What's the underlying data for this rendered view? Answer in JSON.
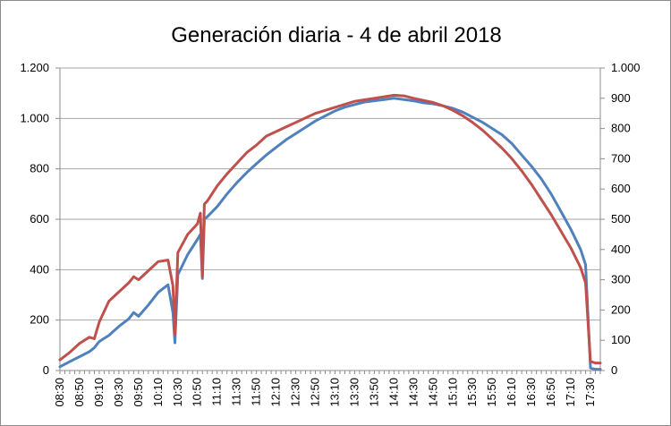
{
  "chart_data": {
    "type": "line",
    "title": "Generación diaria - 4 de abril 2018",
    "xlabel": "",
    "ylabel": "",
    "y_left": {
      "ylim": [
        0,
        1200
      ],
      "ticks": [
        0,
        200,
        400,
        600,
        800,
        1000,
        1200
      ],
      "tick_labels": [
        "0",
        "200",
        "400",
        "600",
        "800",
        "1.000",
        "1.200"
      ]
    },
    "y_right": {
      "ylim": [
        0,
        1000
      ],
      "ticks": [
        0,
        100,
        200,
        300,
        400,
        500,
        600,
        700,
        800,
        900,
        1000
      ],
      "tick_labels": [
        "0",
        "100",
        "200",
        "300",
        "400",
        "500",
        "600",
        "700",
        "800",
        "900",
        "1.000"
      ]
    },
    "x_range": [
      "08:30",
      "17:40"
    ],
    "x_tick_labels": [
      "08:30",
      "08:50",
      "09:10",
      "09:30",
      "09:50",
      "10:10",
      "10:30",
      "10:50",
      "11:10",
      "11:30",
      "11:50",
      "12:10",
      "12:30",
      "12:50",
      "13:10",
      "13:30",
      "13:50",
      "14:10",
      "14:30",
      "14:50",
      "15:10",
      "15:30",
      "15:50",
      "16:10",
      "16:30",
      "16:50",
      "17:10",
      "17:30"
    ],
    "grid": true,
    "legend": "none",
    "series": [
      {
        "axis": "left",
        "color": "#4f81bd",
        "points": [
          [
            "08:30",
            15
          ],
          [
            "08:40",
            35
          ],
          [
            "08:50",
            55
          ],
          [
            "09:00",
            75
          ],
          [
            "09:05",
            90
          ],
          [
            "09:10",
            115
          ],
          [
            "09:20",
            140
          ],
          [
            "09:30",
            175
          ],
          [
            "09:40",
            205
          ],
          [
            "09:45",
            230
          ],
          [
            "09:50",
            215
          ],
          [
            "10:00",
            260
          ],
          [
            "10:10",
            310
          ],
          [
            "10:20",
            340
          ],
          [
            "10:25",
            230
          ],
          [
            "10:27",
            110
          ],
          [
            "10:30",
            380
          ],
          [
            "10:40",
            460
          ],
          [
            "10:50",
            520
          ],
          [
            "10:53",
            540
          ],
          [
            "10:55",
            365
          ],
          [
            "10:57",
            600
          ],
          [
            "11:00",
            610
          ],
          [
            "11:10",
            650
          ],
          [
            "11:20",
            700
          ],
          [
            "11:30",
            745
          ],
          [
            "11:40",
            785
          ],
          [
            "11:50",
            820
          ],
          [
            "12:00",
            855
          ],
          [
            "12:10",
            885
          ],
          [
            "12:20",
            915
          ],
          [
            "12:30",
            940
          ],
          [
            "12:40",
            965
          ],
          [
            "12:50",
            990
          ],
          [
            "13:00",
            1010
          ],
          [
            "13:10",
            1030
          ],
          [
            "13:20",
            1045
          ],
          [
            "13:30",
            1055
          ],
          [
            "13:40",
            1065
          ],
          [
            "13:50",
            1070
          ],
          [
            "14:00",
            1075
          ],
          [
            "14:10",
            1080
          ],
          [
            "14:20",
            1075
          ],
          [
            "14:30",
            1070
          ],
          [
            "14:40",
            1062
          ],
          [
            "14:50",
            1058
          ],
          [
            "15:00",
            1050
          ],
          [
            "15:10",
            1040
          ],
          [
            "15:20",
            1025
          ],
          [
            "15:30",
            1005
          ],
          [
            "15:40",
            985
          ],
          [
            "15:50",
            960
          ],
          [
            "16:00",
            935
          ],
          [
            "16:10",
            900
          ],
          [
            "16:20",
            855
          ],
          [
            "16:30",
            810
          ],
          [
            "16:40",
            760
          ],
          [
            "16:50",
            700
          ],
          [
            "17:00",
            630
          ],
          [
            "17:10",
            560
          ],
          [
            "17:20",
            480
          ],
          [
            "17:25",
            420
          ],
          [
            "17:30",
            10
          ],
          [
            "17:35",
            5
          ],
          [
            "17:40",
            5
          ]
        ]
      },
      {
        "axis": "right",
        "color": "#c0504d",
        "points": [
          [
            "08:30",
            35
          ],
          [
            "08:40",
            60
          ],
          [
            "08:50",
            90
          ],
          [
            "09:00",
            110
          ],
          [
            "09:05",
            105
          ],
          [
            "09:10",
            160
          ],
          [
            "09:20",
            230
          ],
          [
            "09:30",
            260
          ],
          [
            "09:40",
            290
          ],
          [
            "09:45",
            310
          ],
          [
            "09:50",
            300
          ],
          [
            "10:00",
            330
          ],
          [
            "10:10",
            360
          ],
          [
            "10:20",
            365
          ],
          [
            "10:25",
            280
          ],
          [
            "10:27",
            120
          ],
          [
            "10:30",
            390
          ],
          [
            "10:40",
            450
          ],
          [
            "10:50",
            485
          ],
          [
            "10:53",
            520
          ],
          [
            "10:55",
            310
          ],
          [
            "10:57",
            550
          ],
          [
            "11:00",
            560
          ],
          [
            "11:10",
            610
          ],
          [
            "11:20",
            650
          ],
          [
            "11:30",
            685
          ],
          [
            "11:40",
            720
          ],
          [
            "11:50",
            745
          ],
          [
            "12:00",
            775
          ],
          [
            "12:10",
            790
          ],
          [
            "12:20",
            805
          ],
          [
            "12:30",
            820
          ],
          [
            "12:40",
            835
          ],
          [
            "12:50",
            850
          ],
          [
            "13:00",
            860
          ],
          [
            "13:10",
            870
          ],
          [
            "13:20",
            880
          ],
          [
            "13:30",
            890
          ],
          [
            "13:40",
            895
          ],
          [
            "13:50",
            900
          ],
          [
            "14:00",
            905
          ],
          [
            "14:10",
            910
          ],
          [
            "14:20",
            908
          ],
          [
            "14:30",
            900
          ],
          [
            "14:40",
            893
          ],
          [
            "14:50",
            886
          ],
          [
            "15:00",
            875
          ],
          [
            "15:10",
            860
          ],
          [
            "15:20",
            842
          ],
          [
            "15:30",
            820
          ],
          [
            "15:40",
            795
          ],
          [
            "15:50",
            765
          ],
          [
            "16:00",
            735
          ],
          [
            "16:10",
            700
          ],
          [
            "16:20",
            660
          ],
          [
            "16:30",
            615
          ],
          [
            "16:40",
            565
          ],
          [
            "16:50",
            515
          ],
          [
            "17:00",
            460
          ],
          [
            "17:10",
            405
          ],
          [
            "17:20",
            340
          ],
          [
            "17:25",
            290
          ],
          [
            "17:30",
            30
          ],
          [
            "17:35",
            25
          ],
          [
            "17:40",
            25
          ]
        ]
      }
    ]
  }
}
